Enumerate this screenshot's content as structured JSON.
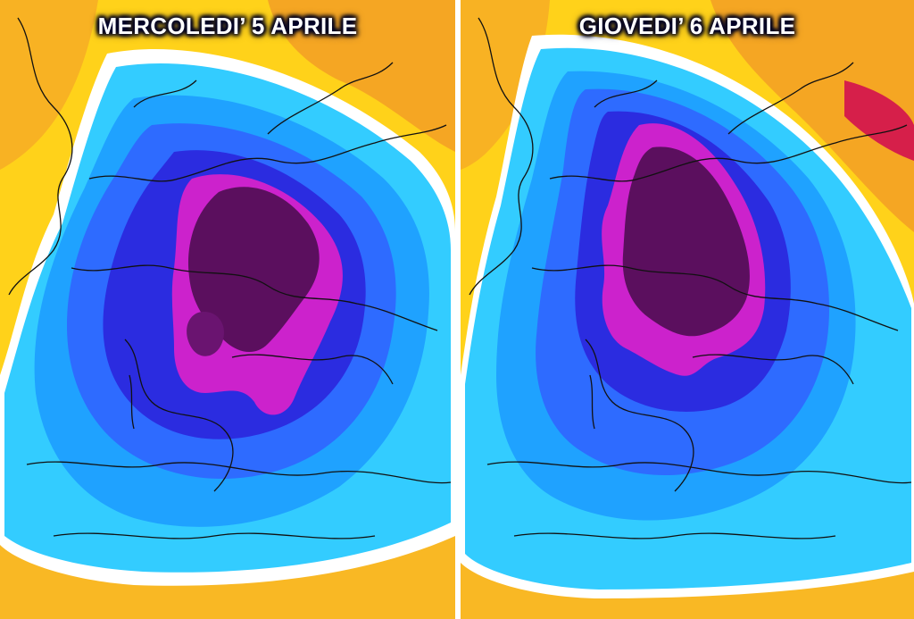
{
  "panels": [
    {
      "title": "MERCOLEDI’ 5 APRILE"
    },
    {
      "title": "GIOVEDI’ 6 APRILE"
    }
  ],
  "colors": {
    "warm_orange": "#f5a623",
    "yellow": "#ffd700",
    "white_band": "#ffffff",
    "light_cyan": "#33ccff",
    "sky_blue": "#1fa2ff",
    "blue": "#2e6bff",
    "deep_blue": "#2b2ce0",
    "magenta": "#cc22cc",
    "dark_purple": "#5b0f5e",
    "red_hotspot": "#d61f4a",
    "coastline": "#111111"
  }
}
